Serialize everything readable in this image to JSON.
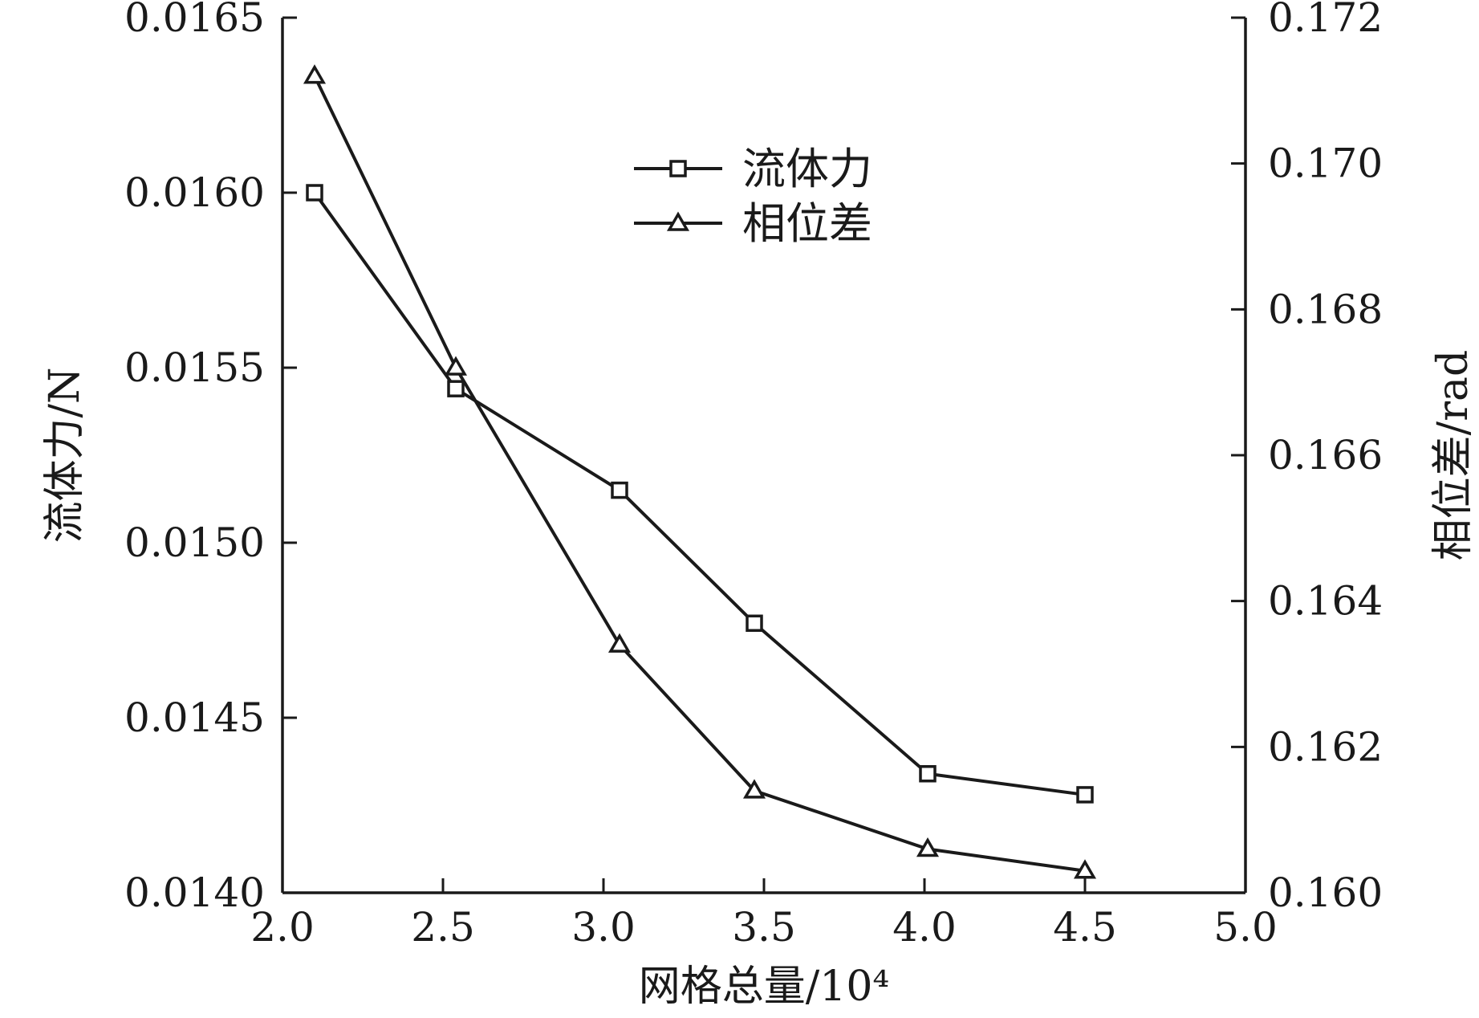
{
  "chart_data": {
    "type": "line",
    "xlabel": "网格总量/10⁴",
    "ylabel": "流体力/N",
    "y2label": "相位差/rad",
    "xlim": [
      2.0,
      5.0
    ],
    "ylim": [
      0.014,
      0.0165
    ],
    "y2lim": [
      0.16,
      0.172
    ],
    "x_ticks": [
      "2.0",
      "2.5",
      "3.0",
      "3.5",
      "4.0",
      "4.5",
      "5.0"
    ],
    "y_ticks": [
      "0.0140",
      "0.0145",
      "0.0150",
      "0.0155",
      "0.0160",
      "0.0165"
    ],
    "y2_ticks": [
      "0.160",
      "0.162",
      "0.164",
      "0.166",
      "0.168",
      "0.170",
      "0.172"
    ],
    "legend_position": "top-center",
    "grid": false,
    "series": [
      {
        "name": "流体力",
        "axis": "left",
        "marker": "square",
        "x": [
          2.1,
          2.54,
          3.05,
          3.47,
          4.01,
          4.5
        ],
        "values": [
          0.016,
          0.01544,
          0.01515,
          0.01477,
          0.01434,
          0.01428
        ]
      },
      {
        "name": "相位差",
        "axis": "right",
        "marker": "triangle",
        "x": [
          2.1,
          2.54,
          3.05,
          3.47,
          4.01,
          4.5
        ],
        "values": [
          0.1712,
          0.1672,
          0.1634,
          0.1614,
          0.1606,
          0.1603
        ]
      }
    ]
  }
}
